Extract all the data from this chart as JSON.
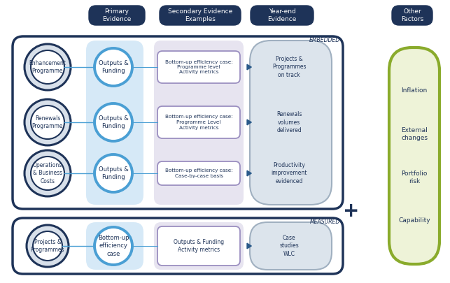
{
  "background_color": "#ffffff",
  "headers": [
    "Primary\nEvidence",
    "Secondary Evidence\nExamples",
    "Year-end\nEvidence",
    "Other\nFactors"
  ],
  "embedded_label": "EMBEDDED",
  "measured_label": "MEASURED",
  "embedded_rows": [
    {
      "left_circle_text": "Enhancement\nProgramme",
      "primary_text": "Outputs &\nFunding",
      "secondary_text": "Bottom-up efficiency case:\nProgramme level\nActivity metrics",
      "yearend_text": "Projects &\nProgrammes\non track"
    },
    {
      "left_circle_text": "Renewals\nProgramme",
      "primary_text": "Outputs &\nFunding",
      "secondary_text": "Bottom-up efficiency case:\nProgramme Level\nActivity metrics",
      "yearend_text": "Renewals\nvolumes\ndelivered"
    },
    {
      "left_circle_text": "Operations\n& Business\nCosts",
      "primary_text": "Outputs &\nFunding",
      "secondary_text": "Bottom-up efficiency case:\nCase-by-case basis",
      "yearend_text": "Productivity\nimprovement\nevidenced"
    }
  ],
  "measured_row": {
    "left_circle_text": "Projects &\nProgrammes",
    "primary_text": "Bottom-up\nefficiency\ncase",
    "secondary_text": "Outputs & Funding\nActivity metrics",
    "yearend_text": "Case\nstudies\nWLC"
  },
  "other_factors_items": [
    "Inflation",
    "External\nchanges",
    "Portfolio\nrisk",
    "Capability"
  ],
  "dark_blue": "#1e3358",
  "mid_blue": "#4a9fd4",
  "light_blue_bg": "#cce4f5",
  "lavender_bg": "#cac5de",
  "lavender_border": "#9b8fc0",
  "green_border": "#8aab2c",
  "light_green_bg": "#eef3d8",
  "light_gray_bg": "#dce4ec",
  "gray_border": "#a0b0c0",
  "gray_circle_bg": "#d8e0ea",
  "white": "#ffffff"
}
